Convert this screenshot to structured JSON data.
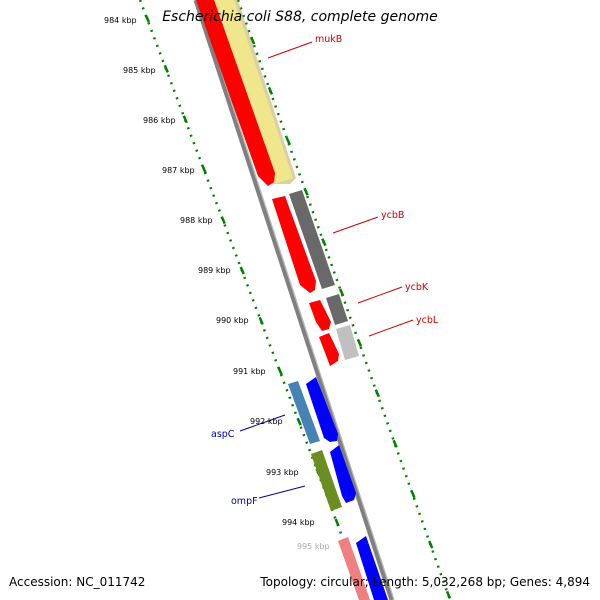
{
  "title": "Escherichia coli S88, complete genome",
  "footer": {
    "accession": "Accession: NC_011742",
    "stats": "Topology: circular; Length: 5,032,268 bp; Genes: 4,894"
  },
  "colors": {
    "ruler": "#008000",
    "backbone": "#808080",
    "label_red": "#cc0000",
    "label_blue": "#000099"
  },
  "tick_labels": [
    "984 kbp",
    "985 kbp",
    "986 kbp",
    "987 kbp",
    "988 kbp",
    "989 kbp",
    "990 kbp",
    "991 kbp",
    "992 kbp",
    "993 kbp",
    "994 kbp",
    "995 kbp"
  ],
  "gene_labels": [
    {
      "name": "mukB",
      "color": "#cc0000"
    },
    {
      "name": "ycbB",
      "color": "#cc0000"
    },
    {
      "name": "ycbK",
      "color": "#cc0000"
    },
    {
      "name": "ycbL",
      "color": "#cc0000"
    },
    {
      "name": "aspC",
      "color": "#000099"
    },
    {
      "name": "ompF",
      "color": "#000099"
    }
  ]
}
